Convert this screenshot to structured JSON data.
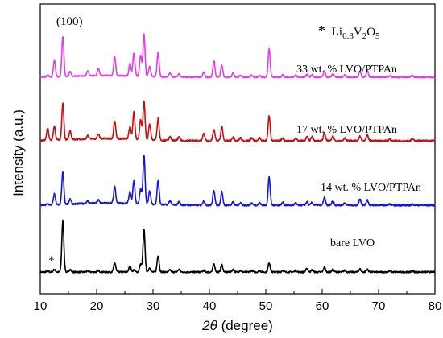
{
  "chart_data": {
    "type": "line",
    "xlabel_italic": "2θ",
    "xlabel_rest": " (degree)",
    "ylabel": "Intensity (a.u.)",
    "xlim": [
      10,
      80
    ],
    "xticks": [
      "10",
      "20",
      "30",
      "40",
      "50",
      "60",
      "70",
      "80"
    ],
    "peaks_2theta": [
      11.3,
      12.5,
      14.0,
      15.3,
      18.4,
      20.3,
      23.2,
      25.9,
      26.6,
      27.8,
      28.4,
      29.4,
      30.9,
      33.0,
      34.6,
      39.0,
      40.8,
      42.2,
      44.2,
      45.5,
      47.5,
      48.9,
      50.6,
      53.0,
      55.3,
      57.3,
      58.2,
      60.4,
      61.9,
      64.0,
      66.7,
      68.0,
      72.0,
      76.0
    ],
    "series": [
      {
        "label": "bare LVO",
        "color": "#000000",
        "intensities": [
          0.02,
          0.05,
          1.0,
          0.05,
          0.02,
          0.03,
          0.18,
          0.12,
          0.04,
          0.15,
          0.82,
          0.08,
          0.32,
          0.04,
          0.05,
          0.03,
          0.16,
          0.14,
          0.05,
          0.03,
          0.03,
          0.03,
          0.18,
          0.03,
          0.03,
          0.07,
          0.04,
          0.09,
          0.05,
          0.03,
          0.06,
          0.05,
          0.02,
          0.02
        ]
      },
      {
        "label": "14 wt. % LVO/PTPAn",
        "color": "#1515dc",
        "intensities": [
          0.02,
          0.2,
          0.6,
          0.1,
          0.04,
          0.06,
          0.3,
          0.22,
          0.42,
          0.28,
          0.9,
          0.25,
          0.45,
          0.08,
          0.06,
          0.08,
          0.28,
          0.25,
          0.06,
          0.04,
          0.04,
          0.04,
          0.52,
          0.05,
          0.04,
          0.06,
          0.05,
          0.14,
          0.08,
          0.04,
          0.12,
          0.1,
          0.02,
          0.02
        ]
      },
      {
        "label": "17 wt. % LVO/PTPAn",
        "color": "#c81010",
        "intensities": [
          0.22,
          0.25,
          0.65,
          0.15,
          0.06,
          0.08,
          0.32,
          0.22,
          0.48,
          0.35,
          0.68,
          0.28,
          0.38,
          0.06,
          0.06,
          0.12,
          0.2,
          0.25,
          0.06,
          0.05,
          0.05,
          0.05,
          0.45,
          0.05,
          0.05,
          0.07,
          0.07,
          0.14,
          0.08,
          0.05,
          0.08,
          0.1,
          0.03,
          0.03
        ]
      },
      {
        "label": "33 wt. % LVO/PTPAn",
        "color": "#e040e0",
        "intensities": [
          0.04,
          0.4,
          0.95,
          0.12,
          0.12,
          0.18,
          0.45,
          0.3,
          0.55,
          0.5,
          1.0,
          0.25,
          0.58,
          0.1,
          0.08,
          0.12,
          0.4,
          0.3,
          0.1,
          0.05,
          0.05,
          0.05,
          0.68,
          0.06,
          0.05,
          0.07,
          0.06,
          0.15,
          0.08,
          0.05,
          0.14,
          0.16,
          0.04,
          0.04
        ]
      }
    ],
    "annotations": {
      "miller_index": "(100)",
      "star": "*",
      "phase_star": "*",
      "phase_formula": "Li0.3V2O5",
      "phase_base": "Li",
      "phase_sub1": "0.3",
      "phase_mid": "V",
      "phase_sub2": "2",
      "phase_o": "O",
      "phase_sub3": "5"
    }
  }
}
